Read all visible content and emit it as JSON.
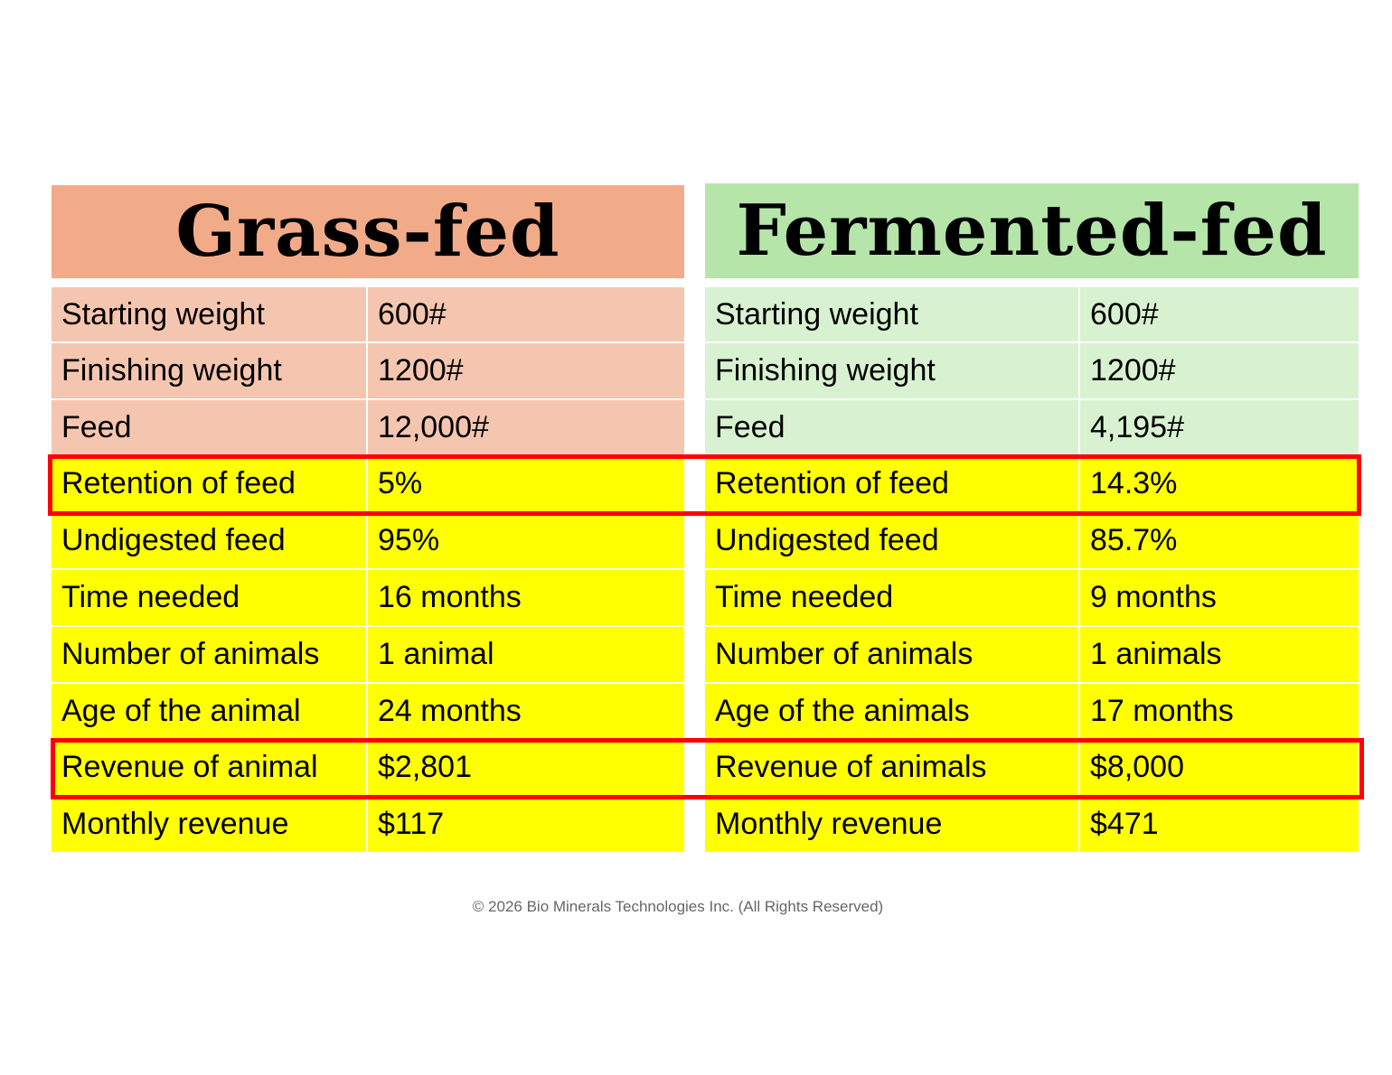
{
  "grass": {
    "title": "Grass-fed",
    "rows": [
      {
        "label": "Starting weight",
        "value": "600#"
      },
      {
        "label": "Finishing weight",
        "value": "1200#"
      },
      {
        "label": "Feed",
        "value": "12,000#"
      },
      {
        "label": "Retention of feed",
        "value": "5%"
      },
      {
        "label": "Undigested feed",
        "value": "95%"
      },
      {
        "label": "Time needed",
        "value": "16 months"
      },
      {
        "label": "Number of animals",
        "value": "1 animal"
      },
      {
        "label": "Age of the animal",
        "value": "24 months"
      },
      {
        "label": "Revenue of animal",
        "value": "$2,801"
      },
      {
        "label": "Monthly revenue",
        "value": "$117"
      }
    ]
  },
  "fermented": {
    "title": "Fermented-fed",
    "rows": [
      {
        "label": "Starting weight",
        "value": "600#"
      },
      {
        "label": "Finishing weight",
        "value": "1200#"
      },
      {
        "label": "Feed",
        "value": "4,195#"
      },
      {
        "label": "Retention of feed",
        "value": "14.3%"
      },
      {
        "label": "Undigested feed",
        "value": "85.7%"
      },
      {
        "label": "Time needed",
        "value": "9 months"
      },
      {
        "label": "Number of animals",
        "value": "1 animals"
      },
      {
        "label": "Age of the animals",
        "value": "17 months"
      },
      {
        "label": "Revenue of animals",
        "value": "$8,000"
      },
      {
        "label": "Monthly revenue",
        "value": "$471"
      }
    ]
  },
  "colors": {
    "grass_header": "#f2ab88",
    "grass_row": "#f5c6af",
    "fermented_header": "#b5e5a9",
    "fermented_row": "#d8f2d1",
    "highlight": "#ffff00",
    "callout_border": "#ff0000"
  },
  "footer": "© 2026 Bio Minerals Technologies Inc. (All Rights Reserved)"
}
